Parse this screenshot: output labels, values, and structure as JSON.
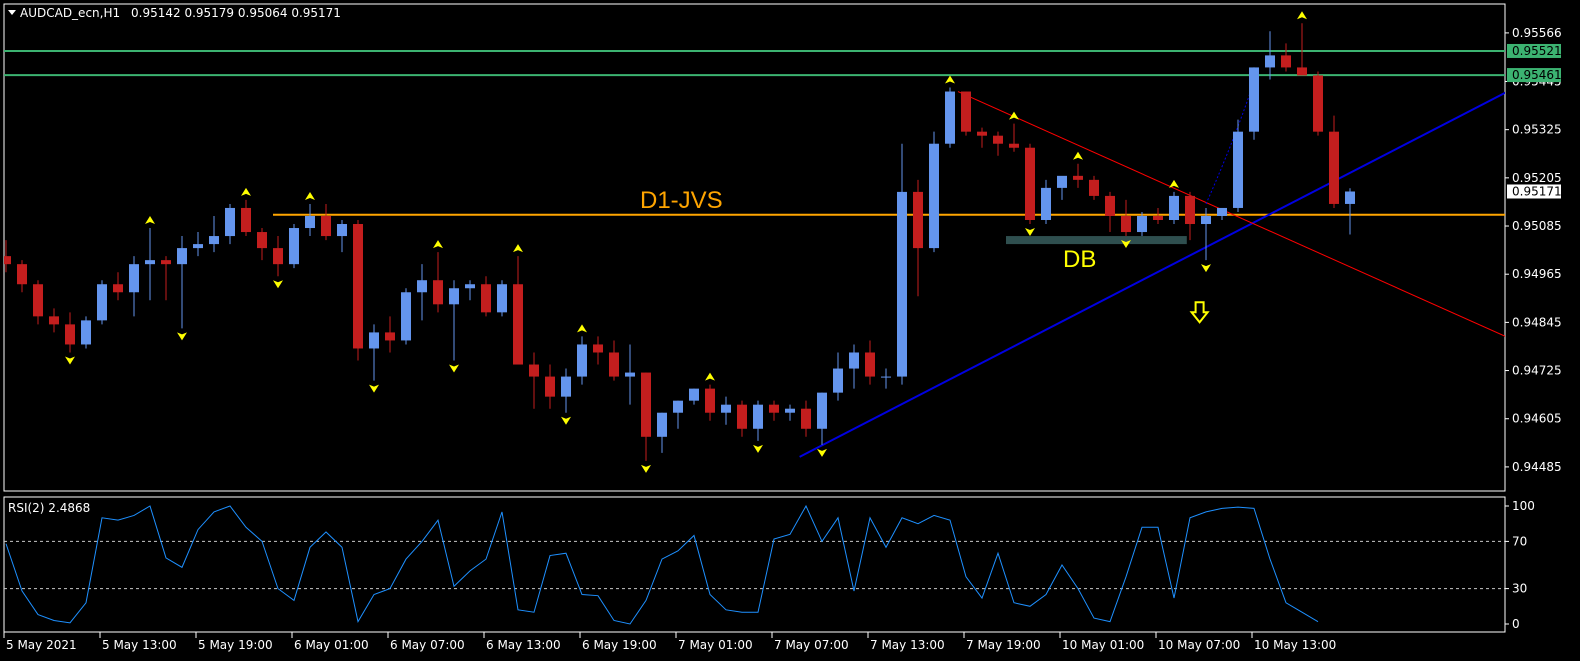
{
  "header": {
    "symbol": "AUDCAD_ecn,H1",
    "ohlc": "0.95142 0.95179 0.95064 0.95171"
  },
  "rsi_header": "RSI(2) 2.4868",
  "colors": {
    "bull": "#6495ED",
    "bear": "#C41E1E",
    "level_line": "#3CB371",
    "level_tag_bg": "#3CB371",
    "jvs_line": "#FFA500",
    "trend_blue": "#0000E0",
    "trend_red": "#FF0000",
    "fractal": "#FFFF00",
    "rsi_line": "#1E90FF",
    "db_box": "#2F4F4F"
  },
  "chart_data": {
    "type": "candlestick",
    "symbol": "AUDCAD_ecn",
    "timeframe": "H1",
    "price_axis": {
      "range": [
        0.94425,
        0.95638
      ],
      "ticks": [
        "0.95566",
        "0.95445",
        "0.95325",
        "0.95205",
        "0.95085",
        "0.94965",
        "0.94845",
        "0.94725",
        "0.94605",
        "0.94485"
      ]
    },
    "time_axis": {
      "labels": [
        "5 May 2021",
        "5 May 13:00",
        "5 May 19:00",
        "6 May 01:00",
        "6 May 07:00",
        "6 May 13:00",
        "6 May 19:00",
        "7 May 01:00",
        "7 May 07:00",
        "7 May 13:00",
        "7 May 19:00",
        "10 May 01:00",
        "10 May 07:00",
        "10 May 13:00"
      ],
      "label_every_bars": 6
    },
    "candles": [
      [
        0.9501,
        0.9505,
        0.9497,
        0.9499
      ],
      [
        0.9499,
        0.95,
        0.9492,
        0.9494
      ],
      [
        0.9494,
        0.9495,
        0.9484,
        0.9486
      ],
      [
        0.9486,
        0.9488,
        0.9482,
        0.9484
      ],
      [
        0.9484,
        0.9487,
        0.9477,
        0.9479
      ],
      [
        0.9479,
        0.9486,
        0.9478,
        0.9485
      ],
      [
        0.9485,
        0.9495,
        0.9484,
        0.9494
      ],
      [
        0.9494,
        0.9497,
        0.949,
        0.9492
      ],
      [
        0.9492,
        0.9501,
        0.9486,
        0.9499
      ],
      [
        0.9499,
        0.9508,
        0.949,
        0.95
      ],
      [
        0.95,
        0.9501,
        0.949,
        0.9499
      ],
      [
        0.9499,
        0.9506,
        0.9483,
        0.9503
      ],
      [
        0.9503,
        0.9507,
        0.9501,
        0.9504
      ],
      [
        0.9504,
        0.9511,
        0.9502,
        0.9506
      ],
      [
        0.9506,
        0.9514,
        0.9504,
        0.9513
      ],
      [
        0.9513,
        0.9515,
        0.9506,
        0.9507
      ],
      [
        0.9507,
        0.9508,
        0.95,
        0.9503
      ],
      [
        0.9503,
        0.9506,
        0.9496,
        0.9499
      ],
      [
        0.9499,
        0.9509,
        0.9498,
        0.9508
      ],
      [
        0.9508,
        0.9514,
        0.9506,
        0.9511
      ],
      [
        0.9511,
        0.9514,
        0.9505,
        0.9506
      ],
      [
        0.9506,
        0.951,
        0.9502,
        0.9509
      ],
      [
        0.9509,
        0.951,
        0.9475,
        0.9478
      ],
      [
        0.9478,
        0.9484,
        0.947,
        0.9482
      ],
      [
        0.9482,
        0.9486,
        0.9477,
        0.948
      ],
      [
        0.948,
        0.9493,
        0.9479,
        0.9492
      ],
      [
        0.9492,
        0.9499,
        0.9485,
        0.9495
      ],
      [
        0.9495,
        0.9502,
        0.9487,
        0.9489
      ],
      [
        0.9489,
        0.9495,
        0.9475,
        0.9493
      ],
      [
        0.9493,
        0.9495,
        0.949,
        0.9494
      ],
      [
        0.9494,
        0.9496,
        0.9486,
        0.9487
      ],
      [
        0.9487,
        0.9495,
        0.9486,
        0.9494
      ],
      [
        0.9494,
        0.9501,
        0.9474,
        0.9474
      ],
      [
        0.9474,
        0.9477,
        0.9463,
        0.9471
      ],
      [
        0.9471,
        0.9474,
        0.9463,
        0.9466
      ],
      [
        0.9466,
        0.9473,
        0.9462,
        0.9471
      ],
      [
        0.9471,
        0.9481,
        0.9469,
        0.9479
      ],
      [
        0.9479,
        0.9481,
        0.9474,
        0.9477
      ],
      [
        0.9477,
        0.948,
        0.947,
        0.9471
      ],
      [
        0.9471,
        0.9479,
        0.9464,
        0.9472
      ],
      [
        0.9472,
        0.9472,
        0.945,
        0.9456
      ],
      [
        0.9456,
        0.9462,
        0.9452,
        0.9462
      ],
      [
        0.9462,
        0.9465,
        0.9458,
        0.9465
      ],
      [
        0.9465,
        0.9468,
        0.9464,
        0.9468
      ],
      [
        0.9468,
        0.9469,
        0.946,
        0.9462
      ],
      [
        0.9462,
        0.9466,
        0.9459,
        0.9464
      ],
      [
        0.9464,
        0.9465,
        0.9456,
        0.9458
      ],
      [
        0.9458,
        0.9465,
        0.9455,
        0.9464
      ],
      [
        0.9464,
        0.9465,
        0.946,
        0.9462
      ],
      [
        0.9462,
        0.9464,
        0.946,
        0.9463
      ],
      [
        0.9463,
        0.9465,
        0.9456,
        0.9458
      ],
      [
        0.9458,
        0.9467,
        0.9454,
        0.9467
      ],
      [
        0.9467,
        0.9477,
        0.9465,
        0.9473
      ],
      [
        0.9473,
        0.9479,
        0.9468,
        0.9477
      ],
      [
        0.9477,
        0.948,
        0.9469,
        0.9471
      ],
      [
        0.9471,
        0.9473,
        0.9468,
        0.9471
      ],
      [
        0.9471,
        0.9529,
        0.9469,
        0.9517
      ],
      [
        0.9517,
        0.952,
        0.9491,
        0.9503
      ],
      [
        0.9503,
        0.9532,
        0.9502,
        0.9529
      ],
      [
        0.9529,
        0.9543,
        0.9528,
        0.9542
      ],
      [
        0.9542,
        0.9542,
        0.9531,
        0.9532
      ],
      [
        0.9532,
        0.9533,
        0.9528,
        0.9531
      ],
      [
        0.9531,
        0.9532,
        0.9526,
        0.9529
      ],
      [
        0.9529,
        0.9534,
        0.9527,
        0.9528
      ],
      [
        0.9528,
        0.9529,
        0.9509,
        0.951
      ],
      [
        0.951,
        0.952,
        0.9509,
        0.9518
      ],
      [
        0.9518,
        0.952,
        0.9515,
        0.9521
      ],
      [
        0.9521,
        0.9524,
        0.9518,
        0.952
      ],
      [
        0.952,
        0.9521,
        0.9515,
        0.9516
      ],
      [
        0.9516,
        0.9517,
        0.9507,
        0.9511
      ],
      [
        0.9511,
        0.9515,
        0.9506,
        0.9507
      ],
      [
        0.9507,
        0.9512,
        0.9506,
        0.9511
      ],
      [
        0.9511,
        0.9513,
        0.9509,
        0.951
      ],
      [
        0.951,
        0.9517,
        0.9509,
        0.9516
      ],
      [
        0.9516,
        0.9517,
        0.9505,
        0.9509
      ],
      [
        0.9509,
        0.9513,
        0.95,
        0.9511
      ],
      [
        0.9511,
        0.9513,
        0.951,
        0.9513
      ],
      [
        0.9513,
        0.9535,
        0.9512,
        0.9532
      ],
      [
        0.9532,
        0.9548,
        0.953,
        0.9548
      ],
      [
        0.9548,
        0.9557,
        0.9545,
        0.9551
      ],
      [
        0.9551,
        0.9554,
        0.9547,
        0.9548
      ],
      [
        0.9548,
        0.9559,
        0.9546,
        0.9546
      ],
      [
        0.9546,
        0.9547,
        0.9531,
        0.9532
      ],
      [
        0.9532,
        0.9536,
        0.9513,
        0.9514
      ],
      [
        0.9514,
        0.95179,
        0.95064,
        0.95171
      ]
    ],
    "rsi": {
      "period": 2,
      "ylim": [
        0,
        100
      ],
      "ticks": [
        "100",
        "70",
        "30",
        "0"
      ],
      "levels": [
        70,
        30
      ],
      "values": [
        68,
        28,
        8,
        3,
        1,
        18,
        90,
        88,
        92,
        100,
        56,
        48,
        80,
        95,
        100,
        82,
        70,
        30,
        20,
        65,
        78,
        65,
        2,
        25,
        30,
        55,
        70,
        88,
        32,
        45,
        55,
        95,
        12,
        10,
        58,
        60,
        25,
        24,
        3,
        0,
        20,
        55,
        62,
        75,
        25,
        12,
        10,
        10,
        72,
        76,
        100,
        70,
        90,
        28,
        90,
        65,
        90,
        85,
        92,
        88,
        40,
        22,
        60,
        18,
        15,
        25,
        50,
        30,
        5,
        2,
        40,
        82,
        82,
        22,
        90,
        95,
        98,
        99,
        98,
        55,
        18,
        10,
        2
      ]
    },
    "horizontal_levels": [
      {
        "price": 0.95521,
        "label": "0.95521"
      },
      {
        "price": 0.95461,
        "label": "0.95461"
      },
      {
        "price": 0.95113,
        "label": "D1-JVS"
      }
    ],
    "current_price_label": "0.95171",
    "annotations": {
      "db_label": "DB",
      "jvs_label": "D1-JVS"
    }
  }
}
